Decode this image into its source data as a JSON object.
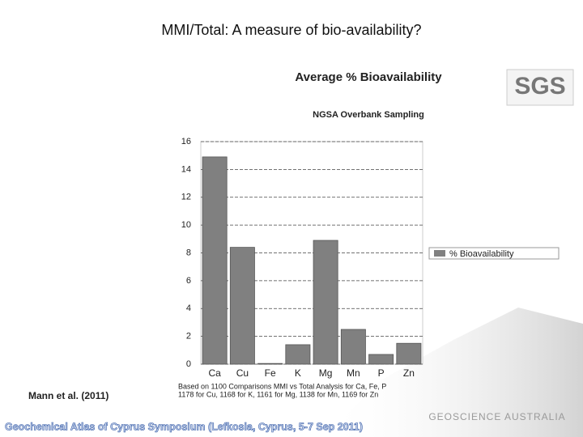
{
  "slide_title": "MMI/Total: A measure of bio-availability?",
  "chart_data": {
    "type": "bar",
    "title": "Average % Bioavailability",
    "subtitle": "NGSA Overbank Sampling",
    "categories": [
      "Ca",
      "Cu",
      "Fe",
      "K",
      "Mg",
      "Mn",
      "P",
      "Zn"
    ],
    "series": [
      {
        "name": "% Bioavailability",
        "color": "#808080",
        "values": [
          14.9,
          8.4,
          0.05,
          1.4,
          8.9,
          2.5,
          0.7,
          1.5
        ]
      }
    ],
    "ylim": [
      0,
      16
    ],
    "yticks": [
      0,
      2,
      4,
      6,
      8,
      10,
      12,
      14,
      16
    ],
    "grid": true,
    "legend": "right",
    "notes": [
      "Based on 1100 Comparisons MMI vs Total Analysis for Ca, Fe, P",
      "1178 for Cu, 1168 for K, 1161 for Mg, 1138 for Mn, 1169 for Zn"
    ]
  },
  "citation": "Mann et al. (2011)",
  "footer": "Geochemical Atlas of Cyprus Symposium (Lefkosia, Cyprus, 5-7 Sep 2011)",
  "logos": [
    "SGS",
    "GEOSCIENCE AUSTRALIA"
  ]
}
